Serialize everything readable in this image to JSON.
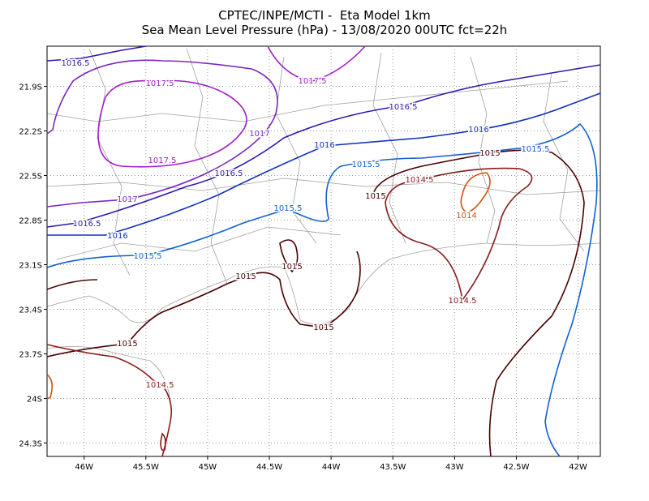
{
  "title": [
    "CPTEC/INPE/MCTI -  Eta Model 1km",
    "Sea Mean Level Pressure (hPa) - 13/08/2020 00UTC fct=22h"
  ],
  "map": {
    "xlim": [
      -46.3,
      -41.82
    ],
    "ylim": [
      -24.39,
      -21.63
    ],
    "grid": true,
    "xticks": [
      {
        "value": -46,
        "label": "46W"
      },
      {
        "value": -45.5,
        "label": "45.5W"
      },
      {
        "value": -45,
        "label": "45W"
      },
      {
        "value": -44.5,
        "label": "44.5W"
      },
      {
        "value": -44,
        "label": "44W"
      },
      {
        "value": -43.5,
        "label": "43.5W"
      },
      {
        "value": -43,
        "label": "43W"
      },
      {
        "value": -42.5,
        "label": "42.5W"
      },
      {
        "value": -42,
        "label": "42W"
      }
    ],
    "yticks": [
      {
        "value": -21.9,
        "label": "21.9S"
      },
      {
        "value": -22.2,
        "label": "22.2S"
      },
      {
        "value": -22.5,
        "label": "22.5S"
      },
      {
        "value": -22.8,
        "label": "22.8S"
      },
      {
        "value": -23.1,
        "label": "23.1S"
      },
      {
        "value": -23.4,
        "label": "23.4S"
      },
      {
        "value": -23.7,
        "label": "23.7S"
      },
      {
        "value": -24,
        "label": "24S"
      },
      {
        "value": -24.3,
        "label": "24.3S"
      }
    ],
    "contours": [
      {
        "level": 1017.5,
        "color": "#a020c8"
      },
      {
        "level": 1017,
        "color": "#7a28c0"
      },
      {
        "level": 1016.5,
        "color": "#3018b0"
      },
      {
        "level": 1016,
        "color": "#1030c0"
      },
      {
        "level": 1015.5,
        "color": "#1060d0"
      },
      {
        "level": 1015,
        "color": "#4a0000"
      },
      {
        "level": 1014.5,
        "color": "#8b1a1a"
      },
      {
        "level": 1014,
        "color": "#d05010"
      }
    ]
  }
}
